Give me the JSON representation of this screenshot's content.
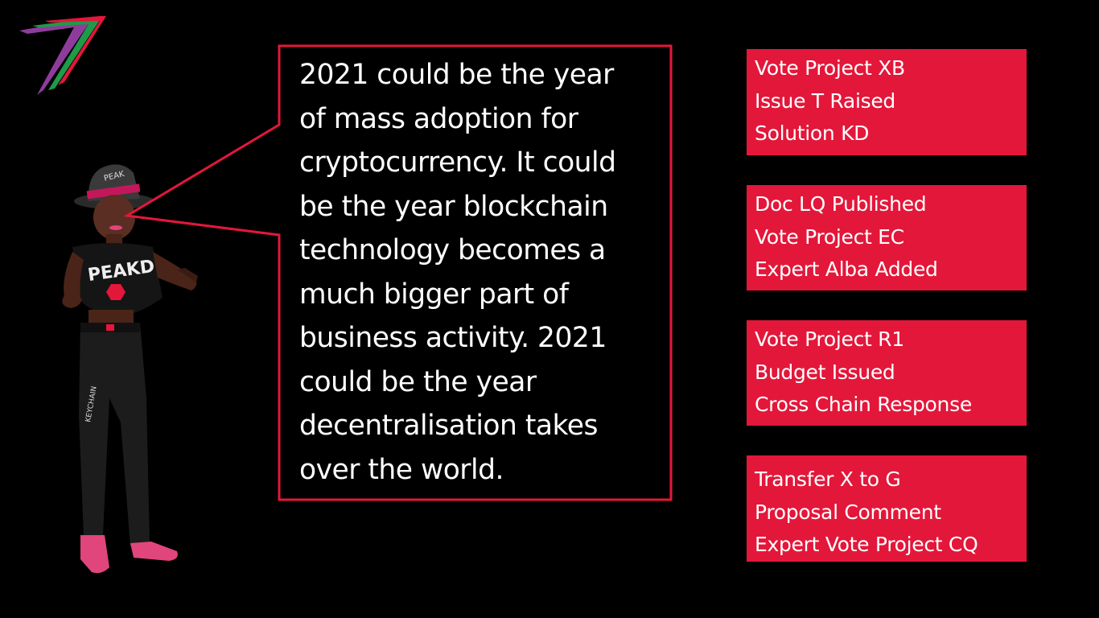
{
  "speech": {
    "text": "2021 could be the year\nof mass adoption for\ncryptocurrency. It could\nbe the year blockchain\ntechnology becomes a\nmuch bigger part of\nbusiness activity. 2021\ncould be the year\ndecentralisation takes\nover the world."
  },
  "avatar": {
    "hat_text": "PEAK",
    "shirt_text": "PEAKD",
    "pants_text": "KEYCHAIN"
  },
  "events": [
    {
      "lines": [
        "Vote Project XB",
        "Issue T Raised",
        "Solution KD"
      ]
    },
    {
      "lines": [
        "Doc LQ Published",
        "Vote Project EC",
        "Expert Alba Added"
      ]
    },
    {
      "lines": [
        "Vote Project R1",
        "Budget Issued",
        "Cross Chain Response"
      ]
    },
    {
      "lines": [
        "Transfer X to G",
        "Proposal Comment",
        "Expert Vote Project CQ"
      ]
    }
  ],
  "colors": {
    "background": "#000000",
    "accent": "#e3173a",
    "logo_purple": "#8e3c9c",
    "logo_green": "#1f9a48",
    "logo_red": "#e3173a",
    "text": "#ffffff"
  }
}
